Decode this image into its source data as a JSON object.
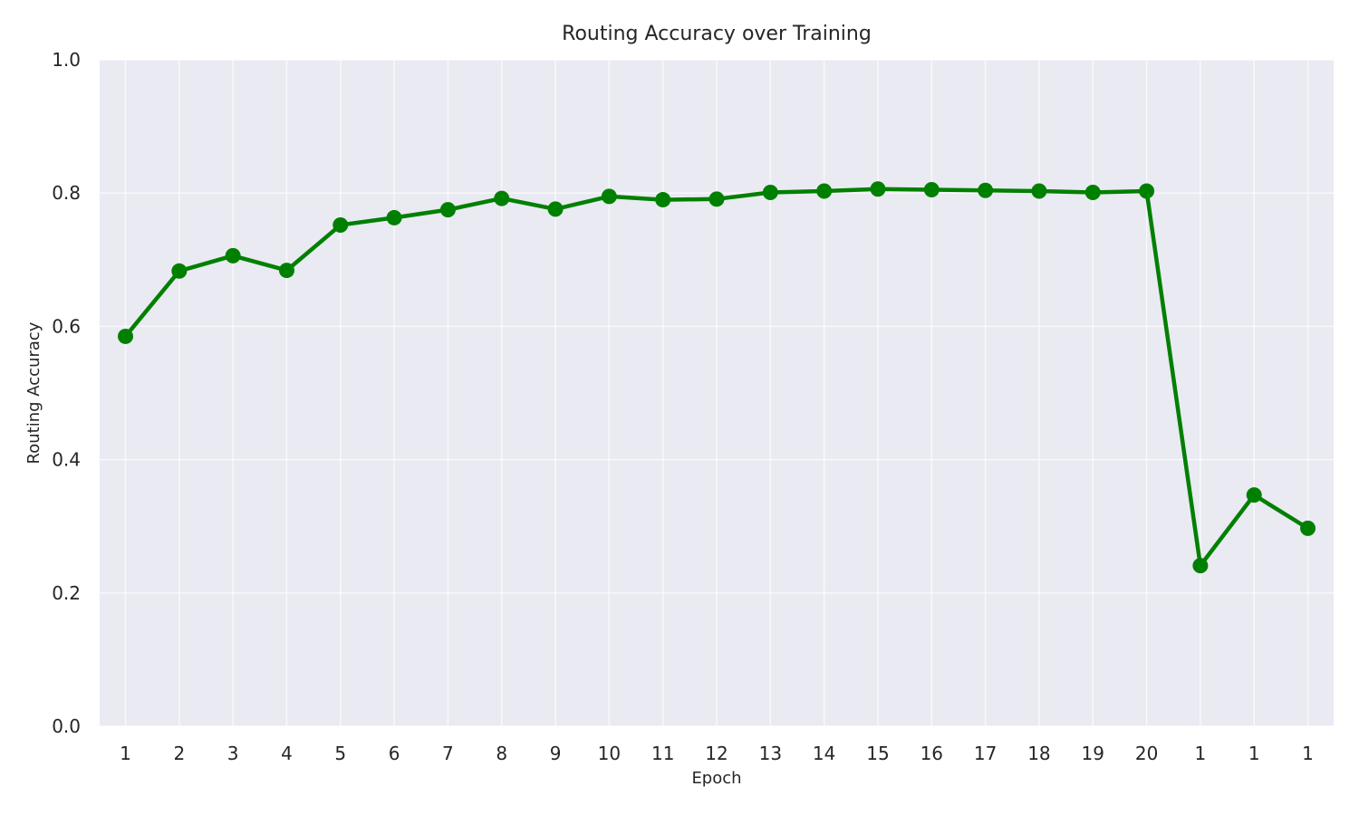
{
  "chart_data": {
    "type": "line",
    "title": "Routing Accuracy over Training",
    "xlabel": "Epoch",
    "ylabel": "Routing Accuracy",
    "ylim": [
      0,
      1.0
    ],
    "yticks": [
      "0.0",
      "0.2",
      "0.4",
      "0.6",
      "0.8",
      "1.0"
    ],
    "grid": true,
    "categories": [
      "1",
      "2",
      "3",
      "4",
      "5",
      "6",
      "7",
      "8",
      "9",
      "10",
      "11",
      "12",
      "13",
      "14",
      "15",
      "16",
      "17",
      "18",
      "19",
      "20",
      "1",
      "1",
      "1"
    ],
    "series": [
      {
        "values": [
          0.585,
          0.683,
          0.706,
          0.684,
          0.752,
          0.763,
          0.775,
          0.792,
          0.776,
          0.795,
          0.79,
          0.791,
          0.801,
          0.803,
          0.806,
          0.805,
          0.804,
          0.803,
          0.801,
          0.803,
          0.241,
          0.347,
          0.297
        ],
        "color": "#008000"
      }
    ]
  },
  "colors": {
    "plot_background": "#eaeaf2",
    "grid": "#ffffff"
  }
}
